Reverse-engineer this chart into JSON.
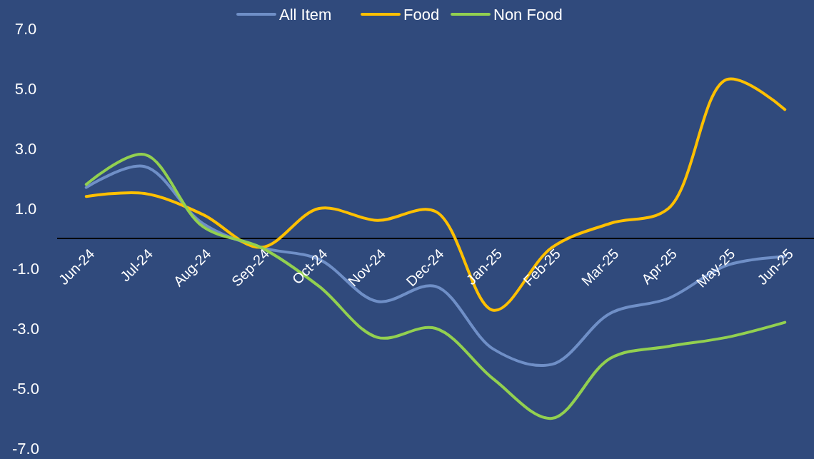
{
  "chart_data": {
    "type": "line",
    "categories": [
      "Jun-24",
      "Jul-24",
      "Aug-24",
      "Sep-24",
      "Oct-24",
      "Nov-24",
      "Dec-24",
      "Jan-25",
      "Feb-25",
      "Mar-25",
      "Apr-25",
      "May-25",
      "Jun-25"
    ],
    "series": [
      {
        "name": "All Item",
        "color": "#6f8fc7",
        "values": [
          1.7,
          2.4,
          0.5,
          -0.3,
          -0.7,
          -2.1,
          -1.6,
          -3.7,
          -4.2,
          -2.5,
          -2.0,
          -0.9,
          -0.6
        ]
      },
      {
        "name": "Food",
        "color": "#ffc000",
        "values": [
          1.4,
          1.5,
          0.8,
          -0.3,
          1.0,
          0.6,
          0.9,
          -2.4,
          -0.3,
          0.5,
          1.0,
          5.3,
          4.3
        ]
      },
      {
        "name": "Non Food",
        "color": "#92d050",
        "values": [
          1.8,
          2.8,
          0.4,
          -0.3,
          -1.6,
          -3.3,
          -3.0,
          -4.7,
          -6.0,
          -4.0,
          -3.6,
          -3.3,
          -2.8
        ]
      }
    ],
    "ylim": [
      -7,
      7
    ],
    "yticks": [
      {
        "value": 7,
        "label": "7.0"
      },
      {
        "value": 5,
        "label": "5.0"
      },
      {
        "value": 3,
        "label": "3.0"
      },
      {
        "value": 1,
        "label": "1.0"
      },
      {
        "value": -1,
        "label": "-1.0"
      },
      {
        "value": -3,
        "label": "-3.0"
      },
      {
        "value": -5,
        "label": "-5.0"
      },
      {
        "value": -7,
        "label": "-7.0"
      }
    ],
    "legend": "top"
  }
}
